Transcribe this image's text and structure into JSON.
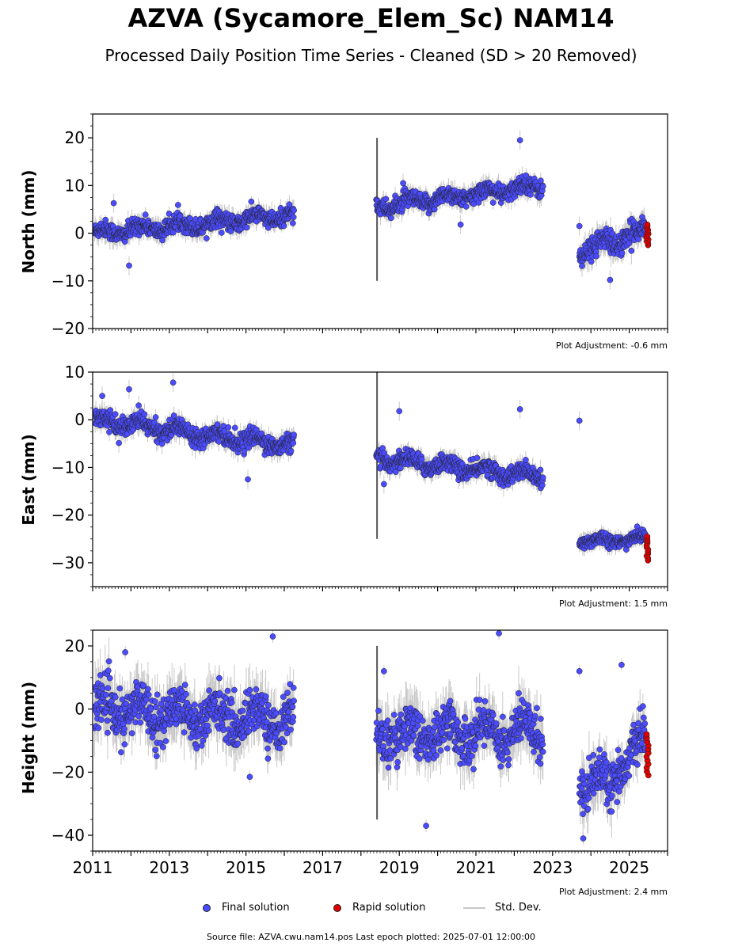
{
  "title": "AZVA (Sycamore_Elem_Sc) NAM14",
  "subtitle": "Processed Daily Position Time Series - Cleaned (SD > 20 Removed)",
  "source_line": "Source file: AZVA.cwu.nam14.pos  Last epoch plotted: 2025-07-01 12:00:00",
  "legend": {
    "final": "Final solution",
    "rapid": "Rapid solution",
    "stddev": "Std. Dev."
  },
  "colors": {
    "final": "#4b4bff",
    "rapid": "#e00000",
    "stddev": "#c8c8c8"
  },
  "chart_data": [
    {
      "type": "scatter",
      "ylabel": "North (mm)",
      "ylim": [
        -20,
        25
      ],
      "yticks": [
        -20,
        -10,
        0,
        10,
        20
      ],
      "xlim": [
        2011,
        2026
      ],
      "adjustment": "Plot Adjustment: -0.6 mm",
      "segments": [
        {
          "x": [
            2011.05,
            2016.25
          ],
          "y": [
            0.0,
            3.8
          ],
          "spread": 1.5
        },
        {
          "x": [
            2018.4,
            2022.75
          ],
          "y": [
            5.5,
            10.0
          ],
          "spread": 1.5
        },
        {
          "x": [
            2023.7,
            2025.45
          ],
          "y": [
            -4.0,
            0.5
          ],
          "spread": 2.0
        }
      ],
      "rapid": {
        "x": [
          2025.45,
          2025.5
        ],
        "y": [
          -2.5,
          1.8
        ]
      },
      "outliers": [
        [
          2011.55,
          6.3
        ],
        [
          2011.95,
          -6.8
        ],
        [
          2022.15,
          19.5
        ],
        [
          2019.1,
          10.5
        ],
        [
          2020.6,
          1.8
        ],
        [
          2024.5,
          -9.8
        ],
        [
          2023.7,
          1.5
        ]
      ]
    },
    {
      "type": "scatter",
      "ylabel": "East (mm)",
      "ylim": [
        -35,
        10
      ],
      "yticks": [
        -30,
        -20,
        -10,
        0,
        10
      ],
      "xlim": [
        2011,
        2026
      ],
      "adjustment": "Plot Adjustment: 1.5 mm",
      "segments": [
        {
          "x": [
            2011.05,
            2016.25
          ],
          "y": [
            0.0,
            -5.5
          ],
          "spread": 1.5
        },
        {
          "x": [
            2018.4,
            2022.75
          ],
          "y": [
            -8.0,
            -12.0
          ],
          "spread": 1.5
        },
        {
          "x": [
            2023.7,
            2025.45
          ],
          "y": [
            -25.5,
            -25.0
          ],
          "spread": 1.2
        }
      ],
      "rapid": {
        "x": [
          2025.45,
          2025.5
        ],
        "y": [
          -29.5,
          -24.5
        ]
      },
      "outliers": [
        [
          2011.25,
          5.0
        ],
        [
          2011.95,
          6.4
        ],
        [
          2012.2,
          3.0
        ],
        [
          2013.1,
          7.8
        ],
        [
          2015.05,
          -12.5
        ],
        [
          2019.0,
          1.8
        ],
        [
          2022.15,
          2.2
        ],
        [
          2023.7,
          -0.2
        ],
        [
          2018.6,
          -13.5
        ]
      ]
    },
    {
      "type": "scatter",
      "ylabel": "Height (mm)",
      "ylim": [
        -45,
        25
      ],
      "yticks": [
        -40,
        -20,
        0,
        20
      ],
      "xlim": [
        2011,
        2026
      ],
      "xticks": [
        2011,
        2013,
        2015,
        2017,
        2019,
        2021,
        2023,
        2025
      ],
      "adjustment": "Plot Adjustment: 2.4 mm",
      "segments": [
        {
          "x": [
            2011.05,
            2016.25
          ],
          "y": [
            0.0,
            -3.5
          ],
          "spread": 6.0
        },
        {
          "x": [
            2018.4,
            2022.75
          ],
          "y": [
            -8.0,
            -7.0
          ],
          "spread": 6.0
        },
        {
          "x": [
            2023.7,
            2024.55
          ],
          "y": [
            -22.0,
            -24.0
          ],
          "spread": 6.0
        },
        {
          "x": [
            2024.55,
            2025.45
          ],
          "y": [
            -20.0,
            -10.0
          ],
          "spread": 5.0
        }
      ],
      "rapid": {
        "x": [
          2025.45,
          2025.5
        ],
        "y": [
          -21.0,
          -8.0
        ]
      },
      "outliers": [
        [
          2011.85,
          18.0
        ],
        [
          2015.7,
          23.0
        ],
        [
          2015.1,
          -21.5
        ],
        [
          2021.6,
          24.0
        ],
        [
          2019.7,
          -37.0
        ],
        [
          2018.6,
          12.0
        ],
        [
          2023.7,
          12.0
        ],
        [
          2024.8,
          14.0
        ],
        [
          2023.8,
          -41.0
        ]
      ]
    }
  ]
}
